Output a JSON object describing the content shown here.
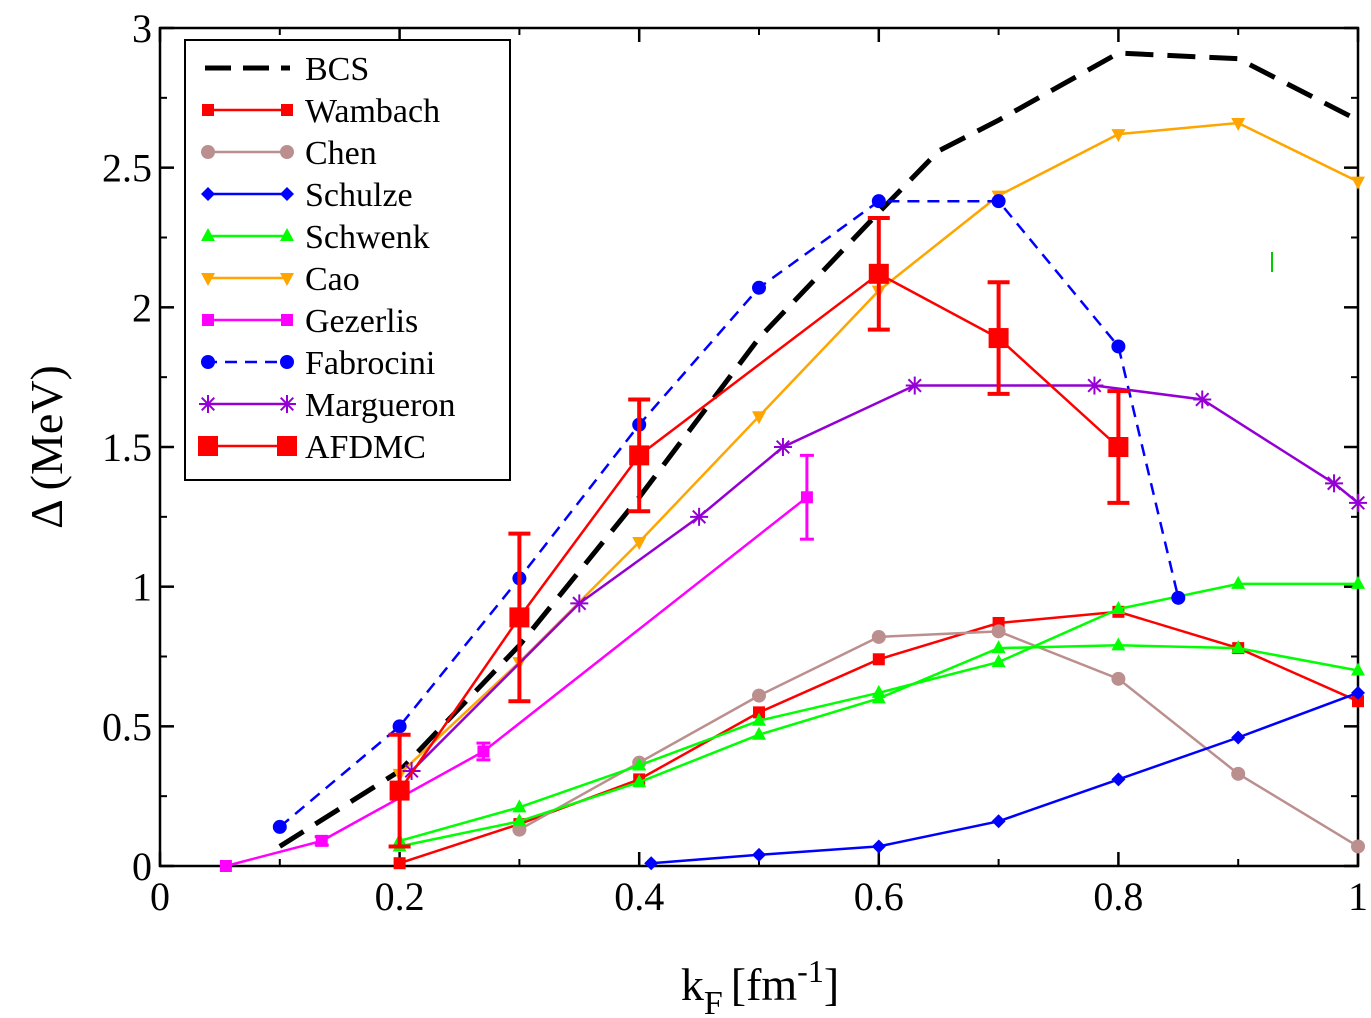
{
  "chart_data": {
    "type": "line",
    "xlabel": "k",
    "xlabel_sub": "F",
    "xlabel_unit": "[fm",
    "xlabel_exp": "-1",
    "xlabel_close": "]",
    "ylabel": "Δ (MeV)",
    "xlim": [
      0,
      1
    ],
    "ylim": [
      0,
      3
    ],
    "xticks": [
      0,
      0.2,
      0.4,
      0.6,
      0.8,
      1
    ],
    "xtick_labels": [
      "0",
      "0.2",
      "0.4",
      "0.6",
      "0.8",
      "1"
    ],
    "yticks": [
      0,
      0.5,
      1,
      1.5,
      2,
      2.5,
      3
    ],
    "ytick_labels": [
      "0",
      "0.5",
      "1",
      "1.5",
      "2",
      "2.5",
      "3"
    ],
    "legend_position": "top-left",
    "series": [
      {
        "name": "BCS",
        "color": "#000000",
        "dash": "28,14",
        "marker": "none",
        "width": 5,
        "x": [
          0.1,
          0.2,
          0.3,
          0.4,
          0.5,
          0.6,
          0.65,
          0.7,
          0.8,
          0.9,
          1.0
        ],
        "y": [
          0.07,
          0.34,
          0.79,
          1.32,
          1.89,
          2.34,
          2.56,
          2.67,
          2.91,
          2.89,
          2.67
        ]
      },
      {
        "name": "Wambach",
        "color": "#ff0000",
        "dash": "",
        "marker": "square",
        "width": 2.5,
        "x": [
          0.2,
          0.3,
          0.4,
          0.5,
          0.6,
          0.7,
          0.8,
          0.9,
          1.0
        ],
        "y": [
          0.01,
          0.15,
          0.31,
          0.55,
          0.74,
          0.87,
          0.91,
          0.78,
          0.59
        ]
      },
      {
        "name": "Chen",
        "color": "#bc8f8f",
        "dash": "",
        "marker": "circle",
        "width": 2.5,
        "x": [
          0.3,
          0.4,
          0.5,
          0.6,
          0.7,
          0.8,
          0.9,
          1.0
        ],
        "y": [
          0.13,
          0.37,
          0.61,
          0.82,
          0.84,
          0.67,
          0.33,
          0.07
        ]
      },
      {
        "name": "Schulze",
        "color": "#0000ff",
        "dash": "",
        "marker": "diamond",
        "width": 2.5,
        "x": [
          0.41,
          0.5,
          0.6,
          0.7,
          0.8,
          0.9,
          1.0
        ],
        "y": [
          0.01,
          0.04,
          0.07,
          0.16,
          0.31,
          0.46,
          0.62
        ]
      },
      {
        "name": "Schwenk",
        "color": "#00ff00",
        "dash": "",
        "marker": "triangle-up",
        "width": 2.5,
        "x": [
          0.2,
          0.3,
          0.4,
          0.5,
          0.6,
          0.7,
          0.8,
          0.9,
          1.0
        ],
        "y": [
          0.09,
          0.21,
          0.36,
          0.52,
          0.62,
          0.73,
          0.92,
          1.01,
          1.01
        ]
      },
      {
        "name": "",
        "color": "#00ff00",
        "dash": "",
        "marker": "triangle-up",
        "width": 2.5,
        "x": [
          0.2,
          0.3,
          0.4,
          0.5,
          0.6,
          0.7,
          0.8,
          0.9,
          1.0
        ],
        "y": [
          0.07,
          0.16,
          0.3,
          0.47,
          0.6,
          0.78,
          0.79,
          0.78,
          0.7
        ]
      },
      {
        "name": "Cao",
        "color": "#ffa500",
        "dash": "",
        "marker": "triangle-down",
        "width": 2.5,
        "x": [
          0.2,
          0.3,
          0.4,
          0.5,
          0.6,
          0.7,
          0.8,
          0.9,
          1.0
        ],
        "y": [
          0.33,
          0.73,
          1.16,
          1.61,
          2.06,
          2.4,
          2.62,
          2.66,
          2.45
        ]
      },
      {
        "name": "Gezerlis",
        "color": "#ff00ff",
        "dash": "",
        "marker": "square",
        "width": 2.5,
        "x": [
          0.055,
          0.135,
          0.27,
          0.54
        ],
        "y": [
          0.0,
          0.09,
          0.41,
          1.32
        ],
        "err": [
          0,
          0.015,
          0.03,
          0.15
        ]
      },
      {
        "name": "Fabrocini",
        "color": "#0000ff",
        "dash": "12,8",
        "marker": "circle",
        "width": 2.5,
        "x": [
          0.1,
          0.2,
          0.3,
          0.4,
          0.5,
          0.6,
          0.7,
          0.8,
          0.85
        ],
        "y": [
          0.14,
          0.5,
          1.03,
          1.58,
          2.07,
          2.38,
          2.38,
          1.86,
          0.96
        ]
      },
      {
        "name": "Margueron",
        "color": "#9400d3",
        "dash": "",
        "marker": "star",
        "width": 2.5,
        "x": [
          0.21,
          0.35,
          0.45,
          0.52,
          0.63,
          0.78,
          0.87,
          0.98,
          1.0
        ],
        "y": [
          0.34,
          0.94,
          1.25,
          1.5,
          1.72,
          1.72,
          1.67,
          1.37,
          1.3
        ]
      },
      {
        "name": "AFDMC",
        "color": "#ff0000",
        "dash": "",
        "marker": "big-square",
        "width": 2.5,
        "x": [
          0.2,
          0.3,
          0.4,
          0.6,
          0.7,
          0.8
        ],
        "y": [
          0.27,
          0.89,
          1.47,
          2.12,
          1.89,
          1.5
        ],
        "err": [
          0.2,
          0.3,
          0.2,
          0.2,
          0.2,
          0.2
        ]
      }
    ]
  }
}
